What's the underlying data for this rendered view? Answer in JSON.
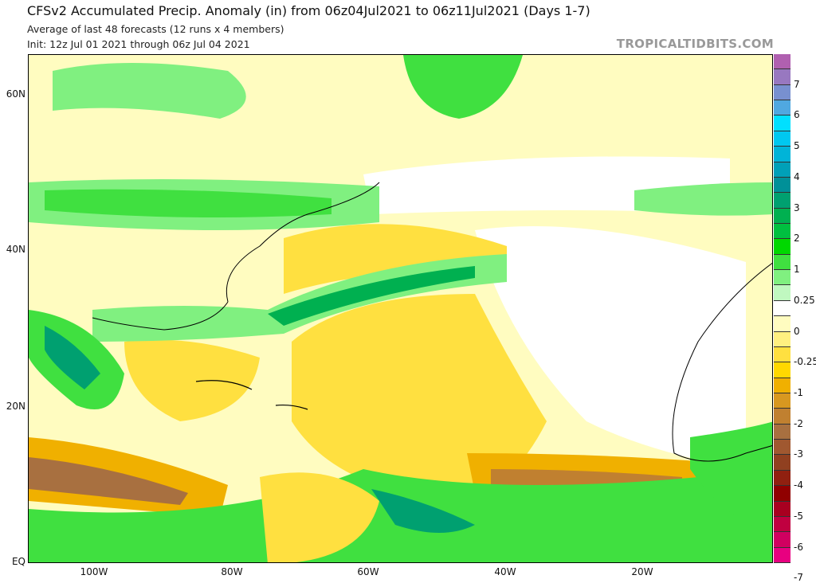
{
  "header": {
    "title": "CFSv2 Accumulated Precip. Anomaly (in) from 06z04Jul2021 to 06z11Jul2021 (Days 1-7)",
    "subtitle": "Average of last 48 forecasts (12 runs x 4 members)",
    "init": "Init: 12z Jul 01 2021 through 06z Jul 04 2021",
    "brand": "TROPICALTIDBITS.COM"
  },
  "map": {
    "lat_labels": [
      "60N",
      "40N",
      "20N",
      "EQ"
    ],
    "lon_labels": [
      "100W",
      "80W",
      "60W",
      "40W",
      "20W"
    ]
  },
  "colorbar": {
    "colors": [
      "#b060b0",
      "#9878c0",
      "#7890d0",
      "#50a8e0",
      "#00e0ff",
      "#00c8f0",
      "#00b4d8",
      "#00a0b8",
      "#009098",
      "#00a070",
      "#00b050",
      "#00c040",
      "#00d800",
      "#40e040",
      "#80f080",
      "#c0f8c0",
      "#ffffff",
      "#fffcc0",
      "#fff080",
      "#ffe040",
      "#ffd800",
      "#f0b000",
      "#d89820",
      "#c08030",
      "#a87040",
      "#a05830",
      "#904020",
      "#902010",
      "#900000",
      "#a80020",
      "#c00040",
      "#d00060",
      "#e80080"
    ],
    "labels": [
      "7",
      "6",
      "5",
      "4",
      "3",
      "2",
      "1",
      "0.25",
      "0",
      "-0.25",
      "-1",
      "-2",
      "-3",
      "-4",
      "-5",
      "-6",
      "-7"
    ]
  }
}
